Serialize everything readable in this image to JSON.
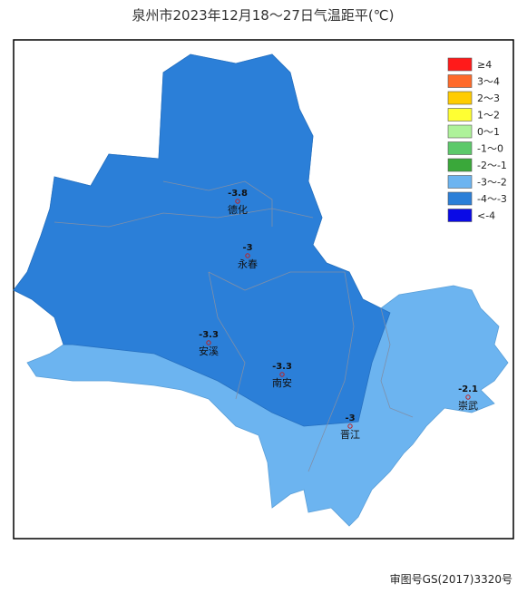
{
  "header": {
    "title": "泉州市2023年12月18～27日气温距平(℃)"
  },
  "legend": {
    "items": [
      {
        "label": "≥4",
        "color": "#ff1a1a"
      },
      {
        "label": "3～4",
        "color": "#ff6a2a"
      },
      {
        "label": "2～3",
        "color": "#ffcc00"
      },
      {
        "label": "1～2",
        "color": "#ffff33"
      },
      {
        "label": "0～1",
        "color": "#aef29a"
      },
      {
        "label": "-1～0",
        "color": "#5cc96a"
      },
      {
        "label": "-2～-1",
        "color": "#3aa83a"
      },
      {
        "label": "-3～-2",
        "color": "#6cb4f0"
      },
      {
        "label": "-4～-3",
        "color": "#2b7fd8"
      },
      {
        "label": "<-4",
        "color": "#0a0ae6"
      }
    ]
  },
  "stations": [
    {
      "name": "德化",
      "value": -3.8
    },
    {
      "name": "永春",
      "value": -3
    },
    {
      "name": "安溪",
      "value": -3.3
    },
    {
      "name": "南安",
      "value": -3.3
    },
    {
      "name": "晋江",
      "value": -3
    },
    {
      "name": "崇武",
      "value": -2.1
    }
  ],
  "footer": {
    "note": "审图号GS(2017)3320号"
  }
}
